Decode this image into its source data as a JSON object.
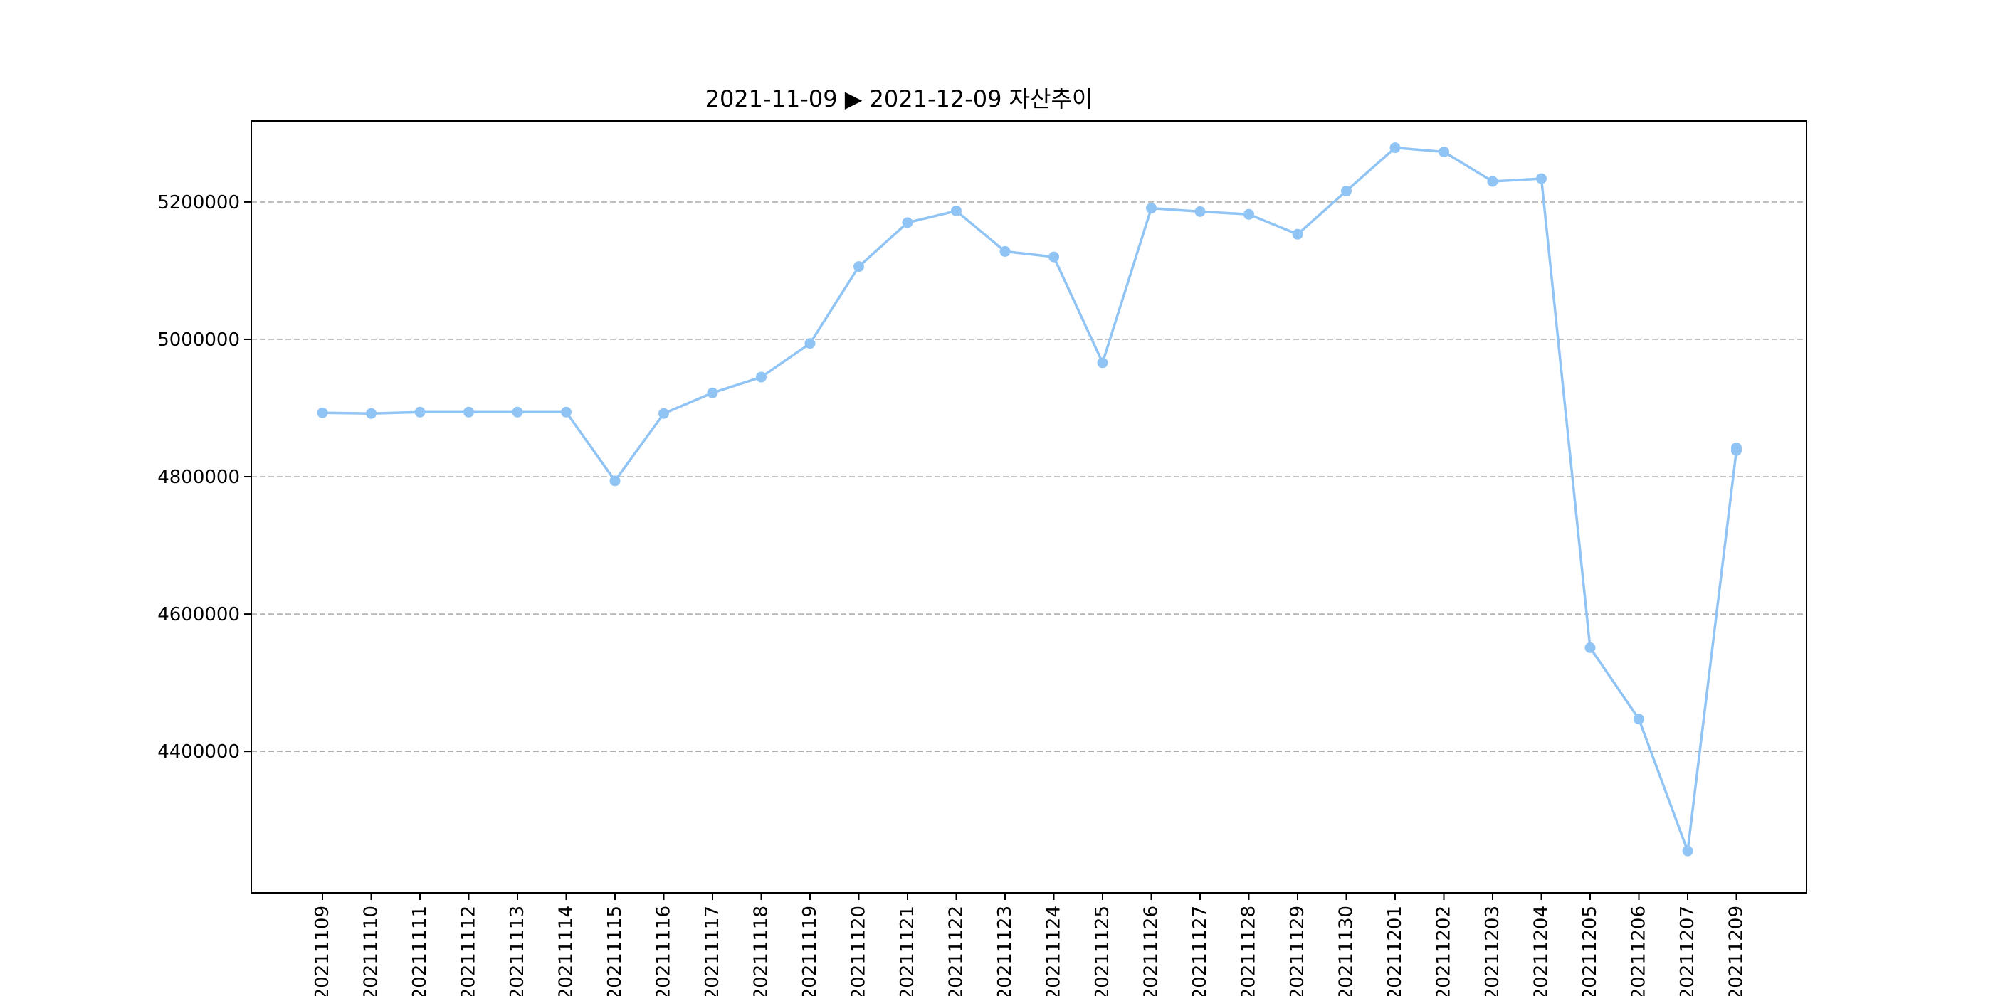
{
  "chart_data": {
    "type": "line",
    "title": "2021-11-09 ▶ 2021-12-09 자산추이",
    "xlabel": "",
    "ylabel": "",
    "grid": "y-dashed",
    "line_color": "#90c4f5",
    "ylim": [
      4194000,
      5318000
    ],
    "yticks": [
      4400000,
      4600000,
      4800000,
      5000000,
      5200000
    ],
    "ytick_labels": [
      "4400000",
      "4600000",
      "4800000",
      "5000000",
      "5200000"
    ],
    "categories": [
      "20211109",
      "20211110",
      "20211111",
      "20211112",
      "20211113",
      "20211114",
      "20211115",
      "20211116",
      "20211117",
      "20211118",
      "20211119",
      "20211120",
      "20211121",
      "20211122",
      "20211123",
      "20211124",
      "20211125",
      "20211126",
      "20211127",
      "20211128",
      "20211129",
      "20211130",
      "20211201",
      "20211202",
      "20211203",
      "20211204",
      "20211205",
      "20211206",
      "20211207",
      "20211209"
    ],
    "values": [
      4893000,
      4892000,
      4894000,
      4894000,
      4894000,
      4894000,
      4794000,
      4892000,
      4922000,
      4945000,
      4994000,
      5106000,
      5170000,
      5187000,
      5128000,
      5120000,
      4966000,
      5191000,
      5186000,
      5182000,
      5153000,
      5216000,
      5279000,
      5273000,
      5230000,
      5234000,
      4551000,
      4447000,
      4255000,
      4838000
    ],
    "extra_points": [
      {
        "category": "20211209",
        "value": 4842000
      }
    ]
  }
}
